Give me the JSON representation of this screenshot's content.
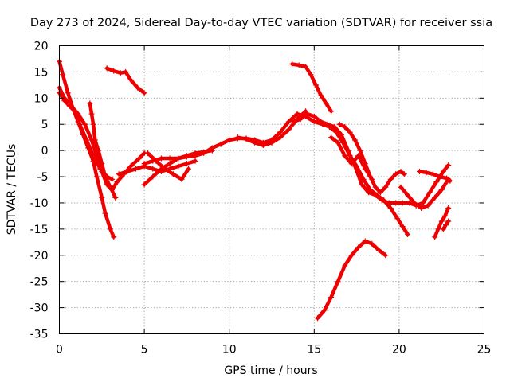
{
  "chart_data": {
    "type": "scatter",
    "title": "Day 273 of 2024, Sidereal Day-to-day VTEC variation (SDTVAR) for receiver ssia",
    "xlabel": "GPS time / hours",
    "ylabel": "SDTVAR / TECUs",
    "xlim": [
      0,
      25
    ],
    "ylim": [
      -35,
      20
    ],
    "xticks": [
      0,
      5,
      10,
      15,
      20,
      25
    ],
    "yticks": [
      -35,
      -30,
      -25,
      -20,
      -15,
      -10,
      -5,
      0,
      5,
      10,
      15,
      20
    ],
    "grid": true,
    "legend": "none",
    "marker": "+",
    "color": "#ee0000",
    "series": [
      {
        "x": [
          0.0,
          0.2,
          0.5,
          0.8,
          1.1,
          1.4,
          1.7,
          2.0,
          2.2,
          2.5,
          2.7,
          3.0,
          3.2
        ],
        "y": [
          17,
          14.5,
          11,
          8,
          5.5,
          3,
          0.5,
          -2,
          -5,
          -9,
          -12,
          -15,
          -16.5
        ]
      },
      {
        "x": [
          0.0,
          0.3,
          0.7,
          1.1,
          1.5,
          1.9,
          2.2,
          2.5,
          2.8,
          3.1,
          3.4,
          3.8,
          4.2,
          4.7,
          5.0
        ],
        "y": [
          12,
          10,
          8.5,
          7,
          5,
          2,
          -1,
          -4,
          -6.5,
          -7.5,
          -6,
          -4.5,
          -3,
          -1.5,
          -0.5
        ]
      },
      {
        "x": [
          0.0,
          0.3,
          0.6,
          0.9,
          1.2,
          1.6,
          2.0,
          2.4,
          2.8,
          3.1
        ],
        "y": [
          11,
          9.5,
          8.5,
          7.5,
          5,
          2,
          -1,
          -3.5,
          -5,
          -5.5
        ]
      },
      {
        "x": [
          1.8,
          1.9,
          2.0,
          2.1,
          2.3,
          2.5,
          2.7,
          3.0,
          3.3
        ],
        "y": [
          9,
          7,
          5,
          2,
          0,
          -2.5,
          -5,
          -7,
          -9
        ]
      },
      {
        "x": [
          2.8,
          3.2,
          3.6,
          3.9,
          4.2,
          4.6,
          5.0
        ],
        "y": [
          15.7,
          15.2,
          14.8,
          15.0,
          13.5,
          12,
          11
        ]
      },
      {
        "x": [
          3.5,
          4.0,
          4.5,
          5.0,
          5.5,
          6.0,
          6.5,
          7.0,
          7.5,
          8.0
        ],
        "y": [
          -4.5,
          -4,
          -3.5,
          -3,
          -3.5,
          -4,
          -3.5,
          -3,
          -2.5,
          -2
        ]
      },
      {
        "x": [
          5.0,
          5.5,
          6.0,
          6.5,
          7.0,
          7.5,
          8.0,
          8.5,
          9.0
        ],
        "y": [
          -6.5,
          -5,
          -3.5,
          -2.5,
          -1.5,
          -1,
          -0.5,
          -0.3,
          0
        ]
      },
      {
        "x": [
          5.2,
          5.7,
          6.2,
          6.7,
          7.2,
          7.6
        ],
        "y": [
          -0.5,
          -2,
          -3.5,
          -4.5,
          -5.5,
          -3.5
        ]
      },
      {
        "x": [
          5.0,
          5.5,
          6.0,
          6.5,
          7.0,
          7.5,
          8.0,
          8.5,
          9.0,
          9.5,
          10.0,
          10.5,
          11.0,
          11.5,
          12.0,
          12.5,
          13.0,
          13.5,
          14.0,
          14.5,
          15.0,
          15.5,
          16.0
        ],
        "y": [
          -2.5,
          -2,
          -1.5,
          -1.5,
          -1.5,
          -1.2,
          -1,
          -0.5,
          0.5,
          1.2,
          2,
          2.3,
          2.3,
          2,
          1.5,
          2,
          3.5,
          5.5,
          7,
          6.5,
          5.5,
          5,
          4.5
        ]
      },
      {
        "x": [
          10.5,
          11.0,
          11.5,
          12.0,
          12.5,
          13.0,
          13.5,
          14.0,
          14.5
        ],
        "y": [
          2.5,
          2.2,
          1.5,
          1,
          1.5,
          2.5,
          4,
          6,
          7.5
        ]
      },
      {
        "x": [
          13.7,
          14.1,
          14.5,
          14.8,
          15.1,
          15.4,
          15.7,
          16.0
        ],
        "y": [
          16.5,
          16.3,
          16,
          14.5,
          12.5,
          10.5,
          9,
          7.5
        ]
      },
      {
        "x": [
          13.8,
          14.2,
          14.6,
          15.0,
          15.4,
          15.8,
          16.2,
          16.6,
          17.0,
          17.4,
          17.8,
          18.2,
          18.6,
          19.0,
          19.4,
          19.8,
          20.2,
          20.6,
          21.0,
          21.4,
          21.8,
          22.2,
          22.6,
          22.9
        ],
        "y": [
          5.5,
          6,
          7,
          6.5,
          5.5,
          5,
          4.5,
          3,
          0,
          -3,
          -6.5,
          -8,
          -8.5,
          -9.5,
          -10,
          -10,
          -10,
          -10,
          -10.5,
          -10,
          -8,
          -6,
          -4,
          -2.8
        ]
      },
      {
        "x": [
          15.5,
          15.9,
          16.3,
          16.7,
          17.1,
          17.5,
          17.9,
          18.3,
          18.7,
          19.1,
          19.5,
          19.9,
          20.2,
          20.5
        ],
        "y": [
          5,
          4.5,
          3.5,
          1.5,
          -1,
          -3,
          -5.5,
          -7.5,
          -8.5,
          -9.5,
          -11,
          -13,
          -14.5,
          -16
        ]
      },
      {
        "x": [
          16.5,
          16.8,
          17.1,
          17.4,
          17.7,
          18.0,
          18.3,
          18.6,
          18.9,
          19.2,
          19.5,
          19.8,
          20.1,
          20.3
        ],
        "y": [
          5,
          4.5,
          3.5,
          2,
          0,
          -2.5,
          -5,
          -7,
          -8,
          -7,
          -5.5,
          -4.5,
          -4,
          -4.5
        ]
      },
      {
        "x": [
          16.0,
          16.4,
          16.8,
          17.2,
          17.6,
          18.0,
          18.4
        ],
        "y": [
          2.5,
          1.5,
          -1,
          -2.5,
          -1,
          -3.5,
          -5.5
        ]
      },
      {
        "x": [
          15.2,
          15.6,
          16.0,
          16.4,
          16.8,
          17.2,
          17.6,
          18.0,
          18.4,
          18.8,
          19.2
        ],
        "y": [
          -32,
          -30.5,
          -28,
          -25,
          -22,
          -20,
          -18.5,
          -17.3,
          -17.8,
          -19,
          -20
        ]
      },
      {
        "x": [
          20.1,
          20.5,
          20.9,
          21.3,
          21.7,
          22.1,
          22.5,
          22.9
        ],
        "y": [
          -7,
          -8.5,
          -10,
          -11,
          -10.5,
          -9,
          -7.5,
          -5.5
        ]
      },
      {
        "x": [
          21.2,
          21.6,
          22.0,
          22.4,
          22.8,
          23.0
        ],
        "y": [
          -4,
          -4.2,
          -4.5,
          -5,
          -5.3,
          -5.8
        ]
      },
      {
        "x": [
          22.1,
          22.3,
          22.5,
          22.7,
          22.9
        ],
        "y": [
          -16.5,
          -15,
          -13.5,
          -12.5,
          -11
        ]
      },
      {
        "x": [
          22.6,
          22.75,
          22.9
        ],
        "y": [
          -15,
          -14.2,
          -13.5
        ]
      }
    ]
  }
}
